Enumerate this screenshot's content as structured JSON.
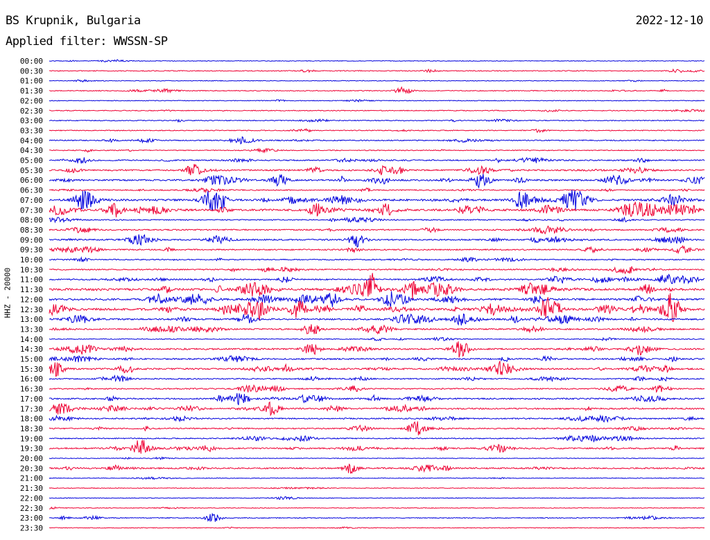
{
  "header": {
    "station": "BS Krupnik, Bulgaria",
    "date": "2022-12-10",
    "filter": "Applied filter: WWSSN-SP"
  },
  "channel_label": "HHZ - 20000",
  "colors": {
    "odd_trace": "#0000dd",
    "even_trace": "#ee0033"
  },
  "chart_data": {
    "type": "line",
    "title": "BS Krupnik, Bulgaria",
    "subtitle": "Applied filter: WWSSN-SP",
    "ylabel": "HHZ - 20000",
    "xlabel": "",
    "grid": false,
    "legend": "none",
    "categories": [
      "00:00",
      "00:30",
      "01:00",
      "01:30",
      "02:00",
      "02:30",
      "03:00",
      "03:30",
      "04:00",
      "04:30",
      "05:00",
      "05:30",
      "06:00",
      "06:30",
      "07:00",
      "07:30",
      "08:00",
      "08:30",
      "09:00",
      "09:30",
      "10:00",
      "10:30",
      "11:00",
      "11:30",
      "12:00",
      "12:30",
      "13:00",
      "13:30",
      "14:00",
      "14:30",
      "15:00",
      "15:30",
      "16:00",
      "16:30",
      "17:00",
      "17:30",
      "18:00",
      "18:30",
      "19:00",
      "19:30",
      "20:00",
      "20:30",
      "21:00",
      "21:30",
      "22:00",
      "22:30",
      "23:00",
      "23:30"
    ],
    "activity": [
      1,
      2,
      1,
      2,
      1,
      2,
      2,
      2,
      3,
      2,
      4,
      5,
      6,
      3,
      8,
      8,
      3,
      4,
      5,
      4,
      3,
      4,
      5,
      9,
      8,
      9,
      6,
      5,
      2,
      6,
      5,
      6,
      4,
      4,
      5,
      5,
      4,
      4,
      3,
      5,
      1,
      5,
      1,
      1,
      1,
      1,
      2,
      1
    ],
    "events": [
      {
        "row": 3,
        "t": 0.54,
        "amp": 5
      },
      {
        "row": 11,
        "t": 0.22,
        "amp": 8
      },
      {
        "row": 12,
        "t": 0.35,
        "amp": 9
      },
      {
        "row": 12,
        "t": 0.66,
        "amp": 11
      },
      {
        "row": 14,
        "t": 0.25,
        "amp": 14
      },
      {
        "row": 14,
        "t": 0.72,
        "amp": 12
      },
      {
        "row": 14,
        "t": 0.8,
        "amp": 12
      },
      {
        "row": 15,
        "t": 0.1,
        "amp": 10
      },
      {
        "row": 18,
        "t": 0.47,
        "amp": 10
      },
      {
        "row": 22,
        "t": 0.94,
        "amp": 8
      },
      {
        "row": 23,
        "t": 0.49,
        "amp": 16
      },
      {
        "row": 24,
        "t": 0.52,
        "amp": 12
      },
      {
        "row": 25,
        "t": 0.38,
        "amp": 14
      },
      {
        "row": 25,
        "t": 0.76,
        "amp": 16
      },
      {
        "row": 25,
        "t": 0.95,
        "amp": 18
      },
      {
        "row": 26,
        "t": 0.3,
        "amp": 7
      },
      {
        "row": 27,
        "t": 0.4,
        "amp": 7
      },
      {
        "row": 29,
        "t": 0.4,
        "amp": 8
      },
      {
        "row": 31,
        "t": 0.01,
        "amp": 10
      },
      {
        "row": 35,
        "t": 0.34,
        "amp": 8
      },
      {
        "row": 37,
        "t": 0.56,
        "amp": 10
      },
      {
        "row": 39,
        "t": 0.14,
        "amp": 12
      },
      {
        "row": 46,
        "t": 0.25,
        "amp": 6
      }
    ]
  }
}
